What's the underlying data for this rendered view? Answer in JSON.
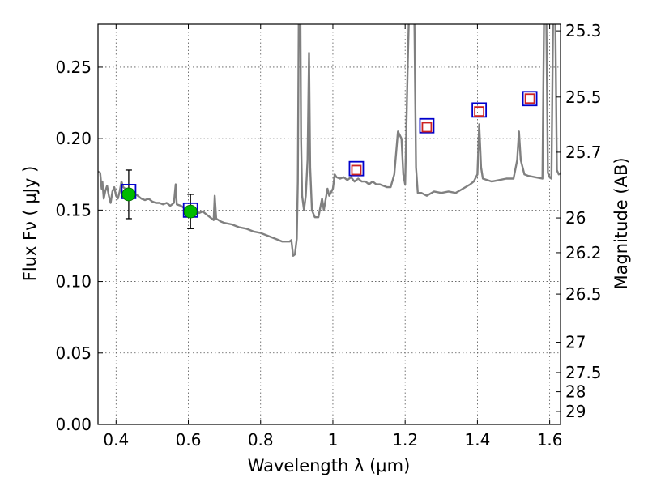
{
  "chart_data": {
    "type": "scatter",
    "xlabel": "Wavelength  λ (μm)",
    "ylabel": "Flux  Fν ( μJy )",
    "ylabel_right": "Magnitude (AB)",
    "xlim": [
      0.35,
      1.63
    ],
    "ylim": [
      0.0,
      0.28
    ],
    "grid": true,
    "x_ticks": [
      0.4,
      0.6,
      0.8,
      1.0,
      1.2,
      1.4,
      1.6
    ],
    "x_tick_labels": [
      "0.4",
      "0.6",
      "0.8",
      "1",
      "1.2",
      "1.4",
      "1.6"
    ],
    "y_ticks": [
      0.0,
      0.05,
      0.1,
      0.15,
      0.2,
      0.25
    ],
    "y_tick_labels": [
      "0.00",
      "0.05",
      "0.10",
      "0.15",
      "0.20",
      "0.25"
    ],
    "right_ticks": [
      {
        "flux": 0.2754,
        "label": "25.3"
      },
      {
        "flux": 0.2291,
        "label": "25.5"
      },
      {
        "flux": 0.1905,
        "label": "25.7"
      },
      {
        "flux": 0.1445,
        "label": "26"
      },
      {
        "flux": 0.1202,
        "label": "26.2"
      },
      {
        "flux": 0.0912,
        "label": "26.5"
      },
      {
        "flux": 0.0575,
        "label": "27"
      },
      {
        "flux": 0.0363,
        "label": "27.5"
      },
      {
        "flux": 0.0229,
        "label": "28"
      },
      {
        "flux": 0.0091,
        "label": "29"
      }
    ],
    "colors": {
      "spectrum": "#808080",
      "observed_fill": "#00bb00",
      "model_square": "#0000cc",
      "predicted_square": "#cc2222",
      "errorbar": "#000000",
      "grid": "#555555"
    },
    "series": [
      {
        "points": [
          {
            "x": 0.435,
            "y": 0.161,
            "yerr": 0.017
          },
          {
            "x": 0.606,
            "y": 0.149,
            "yerr": 0.012
          }
        ]
      },
      {
        "points": [
          {
            "x": 0.435,
            "y": 0.163
          },
          {
            "x": 0.606,
            "y": 0.15
          },
          {
            "x": 1.065,
            "y": 0.179
          },
          {
            "x": 1.26,
            "y": 0.209
          },
          {
            "x": 1.405,
            "y": 0.22
          },
          {
            "x": 1.545,
            "y": 0.228
          }
        ]
      },
      {
        "points": [
          {
            "x": 1.065,
            "y": 0.178
          },
          {
            "x": 1.26,
            "y": 0.208
          },
          {
            "x": 1.405,
            "y": 0.219
          },
          {
            "x": 1.545,
            "y": 0.228
          }
        ]
      }
    ],
    "spectrum": [
      [
        0.35,
        0.177
      ],
      [
        0.356,
        0.176
      ],
      [
        0.36,
        0.165
      ],
      [
        0.362,
        0.17
      ],
      [
        0.366,
        0.158
      ],
      [
        0.37,
        0.163
      ],
      [
        0.375,
        0.167
      ],
      [
        0.38,
        0.16
      ],
      [
        0.385,
        0.155
      ],
      [
        0.39,
        0.163
      ],
      [
        0.395,
        0.166
      ],
      [
        0.4,
        0.16
      ],
      [
        0.405,
        0.158
      ],
      [
        0.41,
        0.163
      ],
      [
        0.415,
        0.17
      ],
      [
        0.42,
        0.166
      ],
      [
        0.43,
        0.164
      ],
      [
        0.44,
        0.163
      ],
      [
        0.45,
        0.162
      ],
      [
        0.46,
        0.16
      ],
      [
        0.47,
        0.158
      ],
      [
        0.48,
        0.157
      ],
      [
        0.49,
        0.158
      ],
      [
        0.5,
        0.156
      ],
      [
        0.51,
        0.155
      ],
      [
        0.52,
        0.155
      ],
      [
        0.53,
        0.154
      ],
      [
        0.54,
        0.155
      ],
      [
        0.55,
        0.153
      ],
      [
        0.56,
        0.155
      ],
      [
        0.565,
        0.168
      ],
      [
        0.568,
        0.154
      ],
      [
        0.58,
        0.153
      ],
      [
        0.59,
        0.151
      ],
      [
        0.6,
        0.151
      ],
      [
        0.61,
        0.15
      ],
      [
        0.615,
        0.152
      ],
      [
        0.62,
        0.15
      ],
      [
        0.63,
        0.148
      ],
      [
        0.64,
        0.149
      ],
      [
        0.65,
        0.147
      ],
      [
        0.66,
        0.145
      ],
      [
        0.67,
        0.143
      ],
      [
        0.673,
        0.16
      ],
      [
        0.677,
        0.144
      ],
      [
        0.69,
        0.142
      ],
      [
        0.7,
        0.141
      ],
      [
        0.72,
        0.14
      ],
      [
        0.74,
        0.138
      ],
      [
        0.76,
        0.137
      ],
      [
        0.78,
        0.135
      ],
      [
        0.8,
        0.134
      ],
      [
        0.82,
        0.132
      ],
      [
        0.84,
        0.13
      ],
      [
        0.85,
        0.129
      ],
      [
        0.86,
        0.128
      ],
      [
        0.87,
        0.128
      ],
      [
        0.88,
        0.128
      ],
      [
        0.885,
        0.129
      ],
      [
        0.89,
        0.118
      ],
      [
        0.895,
        0.119
      ],
      [
        0.9,
        0.13
      ],
      [
        0.903,
        0.17
      ],
      [
        0.906,
        0.3
      ],
      [
        0.91,
        0.29
      ],
      [
        0.912,
        0.2
      ],
      [
        0.915,
        0.16
      ],
      [
        0.92,
        0.15
      ],
      [
        0.925,
        0.16
      ],
      [
        0.93,
        0.185
      ],
      [
        0.934,
        0.26
      ],
      [
        0.937,
        0.18
      ],
      [
        0.942,
        0.15
      ],
      [
        0.95,
        0.145
      ],
      [
        0.96,
        0.145
      ],
      [
        0.97,
        0.158
      ],
      [
        0.975,
        0.15
      ],
      [
        0.985,
        0.165
      ],
      [
        0.99,
        0.16
      ],
      [
        1.0,
        0.165
      ],
      [
        1.005,
        0.175
      ],
      [
        1.01,
        0.173
      ],
      [
        1.02,
        0.172
      ],
      [
        1.03,
        0.173
      ],
      [
        1.04,
        0.171
      ],
      [
        1.05,
        0.173
      ],
      [
        1.06,
        0.17
      ],
      [
        1.07,
        0.172
      ],
      [
        1.08,
        0.17
      ],
      [
        1.09,
        0.17
      ],
      [
        1.1,
        0.168
      ],
      [
        1.11,
        0.17
      ],
      [
        1.12,
        0.168
      ],
      [
        1.13,
        0.168
      ],
      [
        1.14,
        0.167
      ],
      [
        1.15,
        0.166
      ],
      [
        1.16,
        0.166
      ],
      [
        1.17,
        0.175
      ],
      [
        1.18,
        0.205
      ],
      [
        1.19,
        0.2
      ],
      [
        1.195,
        0.175
      ],
      [
        1.2,
        0.168
      ],
      [
        1.207,
        0.25
      ],
      [
        1.212,
        0.3
      ],
      [
        1.225,
        0.3
      ],
      [
        1.23,
        0.18
      ],
      [
        1.235,
        0.162
      ],
      [
        1.245,
        0.162
      ],
      [
        1.26,
        0.16
      ],
      [
        1.28,
        0.163
      ],
      [
        1.3,
        0.162
      ],
      [
        1.32,
        0.163
      ],
      [
        1.34,
        0.162
      ],
      [
        1.36,
        0.165
      ],
      [
        1.38,
        0.168
      ],
      [
        1.39,
        0.17
      ],
      [
        1.4,
        0.175
      ],
      [
        1.405,
        0.21
      ],
      [
        1.41,
        0.18
      ],
      [
        1.415,
        0.172
      ],
      [
        1.44,
        0.17
      ],
      [
        1.46,
        0.171
      ],
      [
        1.48,
        0.172
      ],
      [
        1.5,
        0.172
      ],
      [
        1.51,
        0.185
      ],
      [
        1.515,
        0.205
      ],
      [
        1.52,
        0.185
      ],
      [
        1.53,
        0.175
      ],
      [
        1.54,
        0.174
      ],
      [
        1.56,
        0.173
      ],
      [
        1.58,
        0.172
      ],
      [
        1.585,
        0.3
      ],
      [
        1.59,
        0.3
      ],
      [
        1.595,
        0.176
      ],
      [
        1.6,
        0.173
      ],
      [
        1.605,
        0.172
      ],
      [
        1.61,
        0.3
      ],
      [
        1.615,
        0.3
      ],
      [
        1.62,
        0.178
      ],
      [
        1.625,
        0.175
      ],
      [
        1.63,
        0.176
      ]
    ]
  }
}
